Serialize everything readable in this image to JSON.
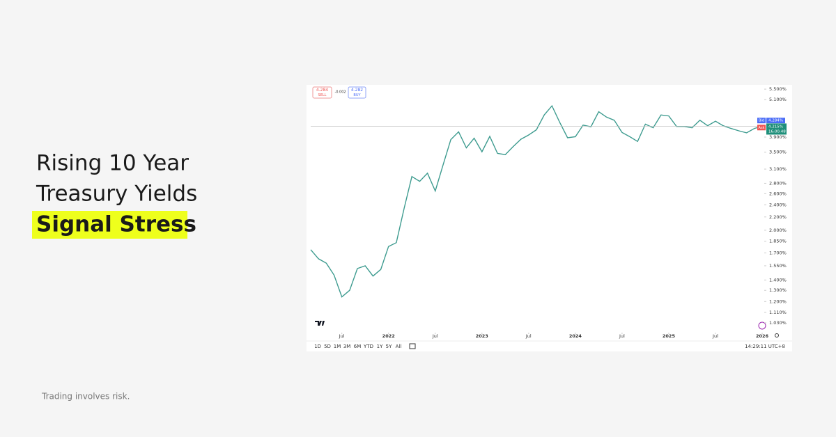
{
  "headline": [
    "Rising 10 Year",
    "Treasury Yields",
    "Signal Stress"
  ],
  "disclaimer": "Trading involves risk.",
  "quote": {
    "sell_price": "4.284",
    "sell_label": "SELL",
    "spread": "-0.002",
    "buy_price": "4.282",
    "buy_label": "BUY"
  },
  "toolbar": {
    "ranges": [
      "1D",
      "5D",
      "1M",
      "3M",
      "6M",
      "YTD",
      "1Y",
      "5Y",
      "All"
    ],
    "clock": "14:29:11 UTC+8"
  },
  "chart_data": {
    "type": "line",
    "log_scale": true,
    "color": "#3d9b8f",
    "x": [
      "2021-03",
      "2021-04",
      "2021-05",
      "2021-06",
      "2021-07",
      "2021-08",
      "2021-09",
      "2021-10",
      "2021-11",
      "2021-12",
      "2022-01",
      "2022-02",
      "2022-03",
      "2022-04",
      "2022-05",
      "2022-06",
      "2022-07",
      "2022-08",
      "2022-09",
      "2022-10",
      "2022-11",
      "2022-12",
      "2023-01",
      "2023-02",
      "2023-03",
      "2023-04",
      "2023-05",
      "2023-06",
      "2023-07",
      "2023-08",
      "2023-09",
      "2023-10",
      "2023-11",
      "2023-12",
      "2024-01",
      "2024-02",
      "2024-03",
      "2024-04",
      "2024-05",
      "2024-06",
      "2024-07",
      "2024-08",
      "2024-09",
      "2024-10",
      "2024-11",
      "2024-12",
      "2025-01",
      "2025-02",
      "2025-03",
      "2025-04",
      "2025-05",
      "2025-06",
      "2025-07",
      "2025-08",
      "2025-09",
      "2025-10",
      "2025-11",
      "2025-12",
      "2026-01"
    ],
    "values": [
      1.74,
      1.63,
      1.58,
      1.45,
      1.24,
      1.3,
      1.52,
      1.55,
      1.44,
      1.51,
      1.78,
      1.83,
      2.34,
      2.94,
      2.84,
      3.01,
      2.65,
      3.19,
      3.83,
      4.05,
      3.61,
      3.87,
      3.51,
      3.92,
      3.47,
      3.44,
      3.64,
      3.84,
      3.96,
      4.11,
      4.57,
      4.88,
      4.33,
      3.88,
      3.91,
      4.25,
      4.2,
      4.68,
      4.5,
      4.4,
      4.03,
      3.91,
      3.78,
      4.28,
      4.17,
      4.57,
      4.54,
      4.21,
      4.21,
      4.17,
      4.4,
      4.23,
      4.37,
      4.23,
      4.15,
      4.08,
      4.02,
      4.15,
      4.215
    ],
    "ylim": [
      0.96,
      5.67
    ],
    "yticks": [
      {
        "value": 1.03,
        "label": "1.030%"
      },
      {
        "value": 1.11,
        "label": "1.110%"
      },
      {
        "value": 1.2,
        "label": "1.200%"
      },
      {
        "value": 1.3,
        "label": "1.300%"
      },
      {
        "value": 1.4,
        "label": "1.400%"
      },
      {
        "value": 1.55,
        "label": "1.550%"
      },
      {
        "value": 1.7,
        "label": "1.700%"
      },
      {
        "value": 1.85,
        "label": "1.850%"
      },
      {
        "value": 2.0,
        "label": "2.000%"
      },
      {
        "value": 2.2,
        "label": "2.200%"
      },
      {
        "value": 2.4,
        "label": "2.400%"
      },
      {
        "value": 2.6,
        "label": "2.600%"
      },
      {
        "value": 2.8,
        "label": "2.800%"
      },
      {
        "value": 3.1,
        "label": "3.100%"
      },
      {
        "value": 3.5,
        "label": "3.500%"
      },
      {
        "value": 3.9,
        "label": "3.900%"
      },
      {
        "value": 5.1,
        "label": "5.100%"
      },
      {
        "value": 5.5,
        "label": "5.500%"
      }
    ],
    "xticks": [
      {
        "value": "2021-07",
        "label": "Jul"
      },
      {
        "value": "2022-01",
        "label": "2022"
      },
      {
        "value": "2022-07",
        "label": "Jul"
      },
      {
        "value": "2023-01",
        "label": "2023"
      },
      {
        "value": "2023-07",
        "label": "Jul"
      },
      {
        "value": "2024-01",
        "label": "2024"
      },
      {
        "value": "2024-07",
        "label": "Jul"
      },
      {
        "value": "2025-01",
        "label": "2025"
      },
      {
        "value": "2025-07",
        "label": "Jul"
      },
      {
        "value": "2026-01",
        "label": "2026"
      }
    ],
    "bid": {
      "name": "Bid",
      "value": 4.284,
      "label": "4.284%",
      "color": "#4a6cf7"
    },
    "ask": {
      "name": "Ask",
      "value": 4.282,
      "label": "4.282%",
      "color": "#ef5350"
    },
    "last": {
      "value": 4.215,
      "label": "4.215%",
      "time": "16:00:48",
      "color": "#1f8f7a"
    }
  }
}
